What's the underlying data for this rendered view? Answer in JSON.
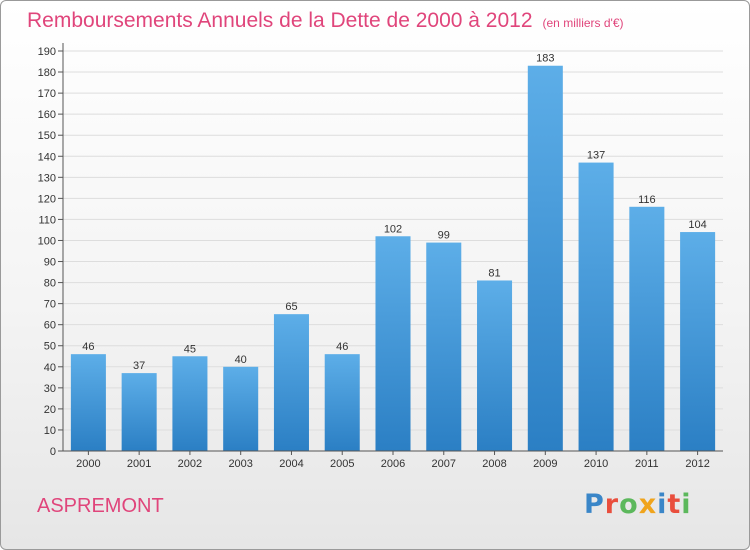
{
  "header": {
    "title": "Remboursements Annuels de la Dette de 2000 à 2012",
    "subtitle": "(en milliers d'€)"
  },
  "footer": {
    "commune": "ASPREMONT",
    "logo": {
      "text": "Proxiti",
      "letters": [
        {
          "ch": "P",
          "color": "#3a86c8"
        },
        {
          "ch": "r",
          "color": "#e94e3d"
        },
        {
          "ch": "o",
          "color": "#5cb85c"
        },
        {
          "ch": "x",
          "color": "#f0a41c"
        },
        {
          "ch": "i",
          "color": "#3a86c8"
        },
        {
          "ch": "t",
          "color": "#e94e3d"
        },
        {
          "ch": "i",
          "color": "#5cb85c"
        }
      ]
    }
  },
  "colors": {
    "accent": "#e0457b",
    "bar_top": "#5daee8",
    "bar_bottom": "#2b7fc4",
    "grid": "#dddddd",
    "axis": "#555555"
  },
  "chart_data": {
    "type": "bar",
    "title": "Remboursements Annuels de la Dette de 2000 à 2012",
    "xlabel": "",
    "ylabel": "",
    "categories": [
      "2000",
      "2001",
      "2002",
      "2003",
      "2004",
      "2005",
      "2006",
      "2007",
      "2008",
      "2009",
      "2010",
      "2011",
      "2012"
    ],
    "values": [
      46,
      37,
      45,
      40,
      65,
      46,
      102,
      99,
      81,
      183,
      137,
      116,
      104
    ],
    "ylim": [
      0,
      190
    ],
    "ytick_step": 10,
    "grid": true,
    "data_labels": true
  }
}
